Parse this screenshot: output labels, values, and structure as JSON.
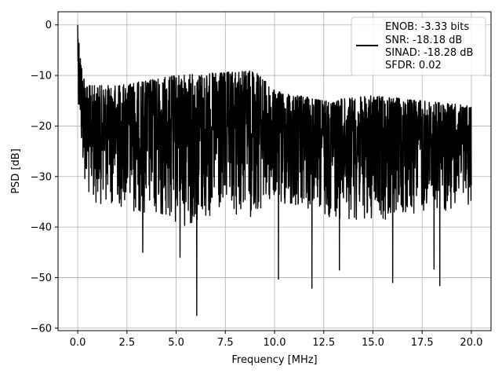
{
  "chart_data": {
    "type": "line",
    "title": "",
    "xlabel": "Frequency [MHz]",
    "ylabel": "PSD [dB]",
    "xlim": [
      -1.0,
      21.0
    ],
    "ylim": [
      -60.5,
      2.6
    ],
    "xticks": [
      0.0,
      2.5,
      5.0,
      7.5,
      10.0,
      12.5,
      15.0,
      17.5,
      20.0
    ],
    "xtick_labels": [
      "0.0",
      "2.5",
      "5.0",
      "7.5",
      "10.0",
      "12.5",
      "15.0",
      "17.5",
      "20.0"
    ],
    "yticks": [
      0,
      -10,
      -20,
      -30,
      -40,
      -50,
      -60
    ],
    "ytick_labels": [
      "0",
      "−10",
      "−20",
      "−30",
      "−40",
      "−50",
      "−60"
    ],
    "grid": true,
    "legend_position": "top-right",
    "series": [
      {
        "name": "ENOB: -3.33 bits\nSNR: -18.18 dB\nSINAD: -18.28 dB\nSFDR: 0.02",
        "color": "#000000",
        "x_range": [
          0.0,
          20.0
        ],
        "points_count": 2048,
        "approx_profile": [
          {
            "x": 0.0,
            "upper": 0.0,
            "lower": -13
          },
          {
            "x": 0.2,
            "upper": -8,
            "lower": -27
          },
          {
            "x": 0.5,
            "upper": -12,
            "lower": -35
          },
          {
            "x": 2.0,
            "upper": -12,
            "lower": -36
          },
          {
            "x": 5.0,
            "upper": -10,
            "lower": -40
          },
          {
            "x": 9.0,
            "upper": -9,
            "lower": -38
          },
          {
            "x": 10.0,
            "upper": -13,
            "lower": -36
          },
          {
            "x": 12.5,
            "upper": -15,
            "lower": -38
          },
          {
            "x": 15.0,
            "upper": -14,
            "lower": -39
          },
          {
            "x": 20.0,
            "upper": -16,
            "lower": -36
          }
        ],
        "notable_dips": [
          {
            "x": 3.3,
            "y": -45
          },
          {
            "x": 5.2,
            "y": -46
          },
          {
            "x": 6.05,
            "y": -57.5
          },
          {
            "x": 10.2,
            "y": -50.3
          },
          {
            "x": 11.9,
            "y": -52.1
          },
          {
            "x": 13.3,
            "y": -48.5
          },
          {
            "x": 16.0,
            "y": -51
          },
          {
            "x": 18.1,
            "y": -48.3
          },
          {
            "x": 18.4,
            "y": -51.6
          }
        ]
      }
    ],
    "legend_lines": [
      "ENOB: -3.33 bits",
      "SNR: -18.18 dB",
      "SINAD: -18.28 dB",
      "SFDR: 0.02"
    ]
  }
}
